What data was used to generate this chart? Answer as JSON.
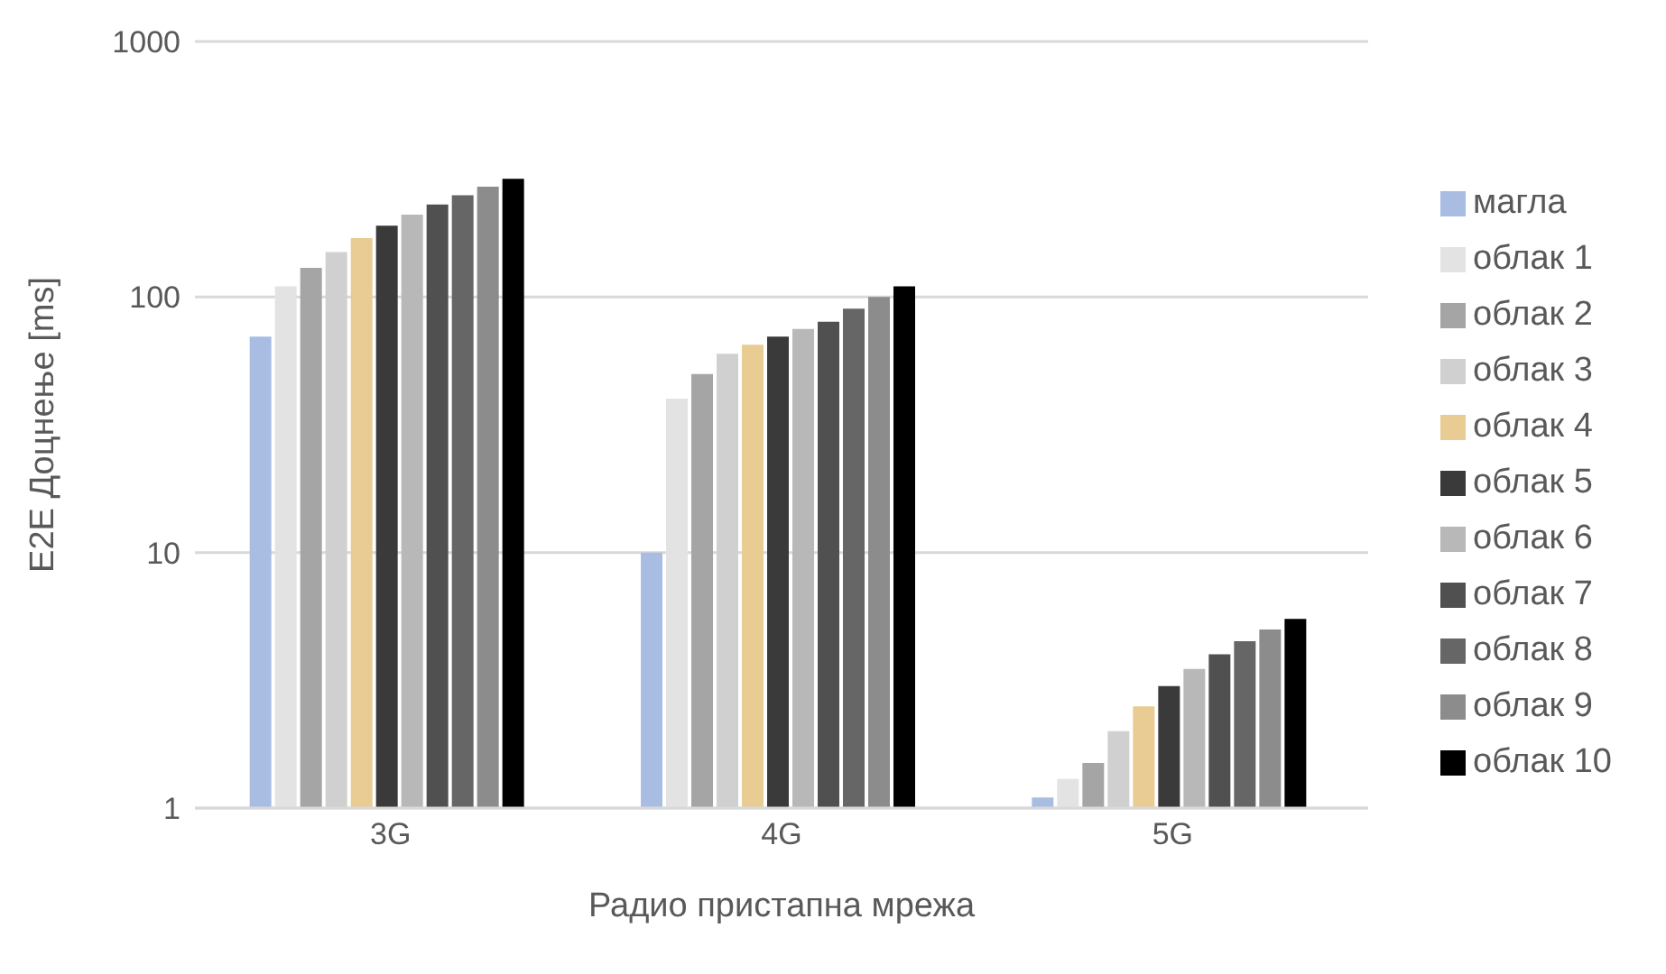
{
  "chart_data": {
    "type": "bar",
    "xlabel": "Радио пристапна мрежа",
    "ylabel": "E2E Доцнење [ms]",
    "categories": [
      "3G",
      "4G",
      "5G"
    ],
    "log": true,
    "ylim": [
      1,
      1000
    ],
    "yticks": [
      1,
      10,
      100,
      1000
    ],
    "grid": "y",
    "legend": "right",
    "series": [
      {
        "name": "магла",
        "color": "#a9bde3",
        "values": [
          70,
          10,
          1.1
        ]
      },
      {
        "name": "облак 1",
        "color": "#e3e3e3",
        "values": [
          110,
          40,
          1.3
        ]
      },
      {
        "name": "облак 2",
        "color": "#a5a5a5",
        "values": [
          130,
          50,
          1.5
        ]
      },
      {
        "name": "облак 3",
        "color": "#d0d0d0",
        "values": [
          150,
          60,
          2.0
        ]
      },
      {
        "name": "облак 4",
        "color": "#e8cc94",
        "values": [
          170,
          65,
          2.5
        ]
      },
      {
        "name": "облак 5",
        "color": "#3a3a3a",
        "values": [
          190,
          70,
          3.0
        ]
      },
      {
        "name": "облак 6",
        "color": "#b8b8b8",
        "values": [
          210,
          75,
          3.5
        ]
      },
      {
        "name": "облак 7",
        "color": "#505050",
        "values": [
          230,
          80,
          4.0
        ]
      },
      {
        "name": "облак 8",
        "color": "#666666",
        "values": [
          250,
          90,
          4.5
        ]
      },
      {
        "name": "облак 9",
        "color": "#8c8c8c",
        "values": [
          270,
          100,
          5.0
        ]
      },
      {
        "name": "облак 10",
        "color": "#000000",
        "values": [
          290,
          110,
          5.5
        ]
      }
    ]
  }
}
